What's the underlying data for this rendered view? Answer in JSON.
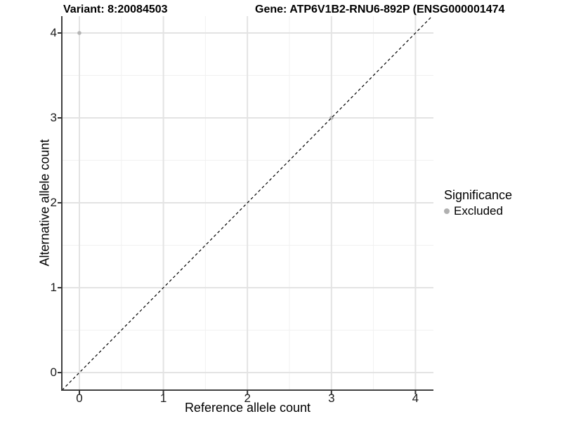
{
  "header": {
    "variant_title": "Variant: 8:20084503",
    "gene_title": "Gene: ATP6V1B2-RNU6-892P (ENSG000001474"
  },
  "chart_data": {
    "type": "scatter",
    "xlabel": "Reference allele count",
    "ylabel": "Alternative allele count",
    "x_ticks": [
      "0",
      "1",
      "2",
      "3",
      "4"
    ],
    "y_ticks": [
      "0",
      "1",
      "2",
      "3",
      "4"
    ],
    "x_tick_values": [
      0,
      1,
      2,
      3,
      4
    ],
    "y_tick_values": [
      0,
      1,
      2,
      3,
      4
    ],
    "minor_grid_values": [
      0.5,
      1.5,
      2.5,
      3.5
    ],
    "xlim": [
      -0.21,
      4.21
    ],
    "ylim": [
      -0.21,
      4.21
    ],
    "grid": true,
    "series": [
      {
        "name": "Excluded",
        "color": "#b5b5b5",
        "points": [
          {
            "x": 0,
            "y": 4
          },
          {
            "x": 3,
            "y": 3
          }
        ]
      }
    ],
    "reference_line": {
      "kind": "identity",
      "equation": "y = x",
      "style": "dashed",
      "color": "#000000"
    },
    "legend": {
      "position": "right",
      "title": "Significance",
      "items": [
        {
          "label": "Excluded",
          "color": "#b0b0b0"
        }
      ]
    }
  },
  "colors": {
    "background": "#ffffff",
    "grid_major": "#e3e3e3",
    "grid_minor": "#f1f1f1",
    "axis_line": "#404040",
    "tick_mark": "#333333",
    "point": "#b5b5b5"
  }
}
